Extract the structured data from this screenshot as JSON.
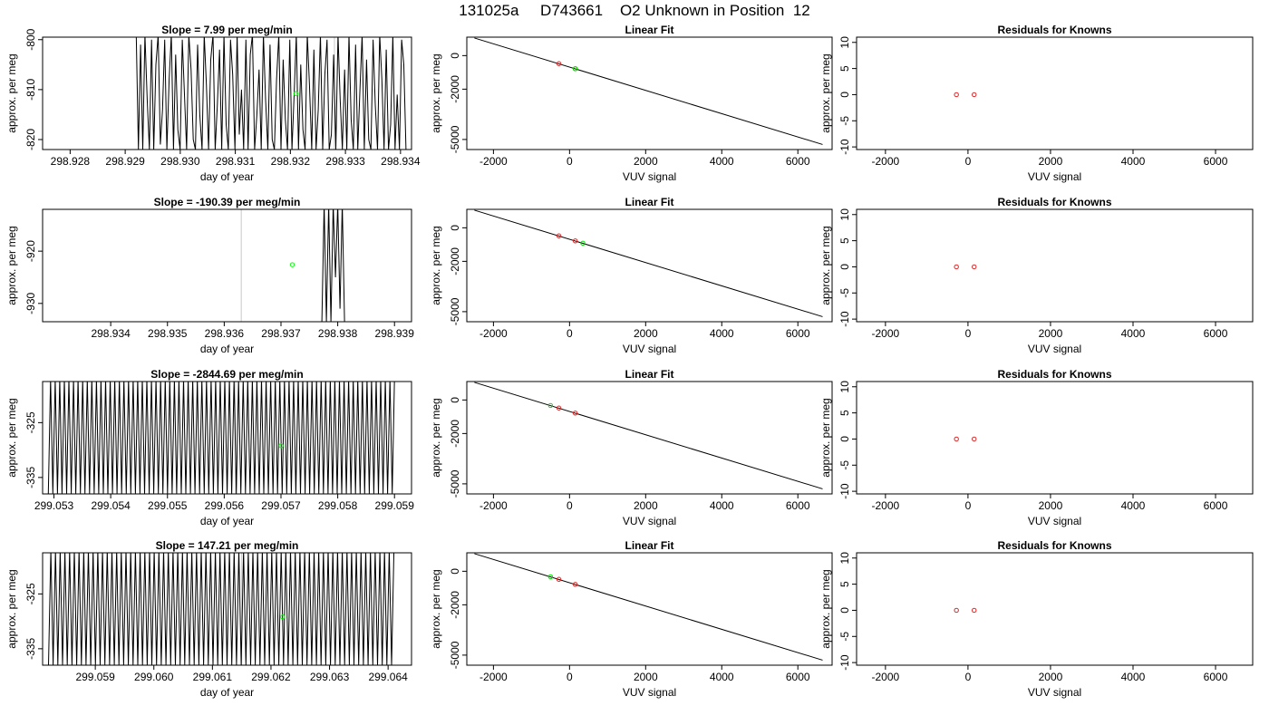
{
  "page": {
    "title": "131025a     D743661    O2 Unknown in Position  12"
  },
  "chart_data": [
    {
      "type": "line",
      "title": "Slope =  7.99  per meg/min",
      "xlabel": "day of year",
      "ylabel": "approx. per meg",
      "xlim": [
        298.9275,
        298.9342
      ],
      "ylim": [
        -822,
        -799.5
      ],
      "x_ticks": [
        298.928,
        298.929,
        298.93,
        298.931,
        298.932,
        298.933,
        298.934
      ],
      "x_tick_labels": [
        "298.928",
        "298.929",
        "298.930",
        "298.931",
        "298.932",
        "298.933",
        "298.934"
      ],
      "y_ticks": [
        -800,
        -810,
        -820
      ],
      "y_tick_labels": [
        "-800",
        "-810",
        "-820"
      ],
      "gray_vline": 298.9328,
      "unknown_point": {
        "x": 298.9321,
        "y": -810.8,
        "color": "#00ff00"
      },
      "trace": {
        "color": "#000000",
        "x_start": 298.9292,
        "x_end": 298.9341,
        "step": 4e-05,
        "y_values": [
          -799,
          -822,
          -801,
          -822,
          -799,
          -812,
          -822,
          -800,
          -822,
          -805,
          -799,
          -821,
          -814,
          -800,
          -822,
          -808,
          -799,
          -822,
          -803,
          -818,
          -822,
          -800,
          -811,
          -822,
          -799,
          -806,
          -820,
          -822,
          -801,
          -815,
          -822,
          -799,
          -809,
          -822,
          -804,
          -799,
          -822,
          -813,
          -802,
          -822,
          -799,
          -817,
          -822,
          -800,
          -807,
          -822,
          -799,
          -819,
          -810,
          -822,
          -800,
          -822,
          -803,
          -799,
          -822,
          -815,
          -806,
          -822,
          -799,
          -812,
          -822,
          -801,
          -820,
          -822,
          -808,
          -799,
          -822,
          -804,
          -816,
          -822,
          -800,
          -822,
          -811,
          -799,
          -822,
          -805,
          -818,
          -822,
          -799,
          -809,
          -822,
          -802,
          -822,
          -814,
          -799,
          -822,
          -807,
          -800,
          -822,
          -819,
          -803,
          -822,
          -799,
          -812,
          -822,
          -806,
          -822,
          -799,
          -816,
          -822,
          -801,
          -822,
          -810,
          -799,
          -822,
          -804,
          -820,
          -822,
          -800,
          -813,
          -822,
          -799,
          -808,
          -822,
          -802,
          -822,
          -817,
          -799,
          -822,
          -811,
          -822,
          -800,
          -805,
          -822
        ]
      }
    },
    {
      "type": "scatter",
      "title": "Linear Fit",
      "xlabel": "VUV signal",
      "ylabel": "approx. per meg",
      "xlim": [
        -2700,
        6900
      ],
      "ylim": [
        -5600,
        1100
      ],
      "x_ticks": [
        -2000,
        0,
        2000,
        4000,
        6000
      ],
      "x_tick_labels": [
        "-2000",
        "0",
        "2000",
        "4000",
        "6000"
      ],
      "y_ticks": [
        0,
        -2000,
        -5000
      ],
      "y_tick_labels": [
        "0",
        "-2000",
        "-5000"
      ],
      "fit_line": {
        "x": [
          -2500,
          6650
        ],
        "y": [
          1050,
          -5300
        ]
      },
      "known_points": [
        {
          "x": -280,
          "y": -480
        },
        {
          "x": 150,
          "y": -780
        }
      ],
      "unknown_points": [
        {
          "x": 150,
          "y": -780
        }
      ]
    },
    {
      "type": "scatter",
      "title": "Residuals for Knowns",
      "xlabel": "VUV signal",
      "ylabel": "approx. per meg",
      "xlim": [
        -2700,
        6900
      ],
      "ylim": [
        -10.5,
        11
      ],
      "x_ticks": [
        -2000,
        0,
        2000,
        4000,
        6000
      ],
      "x_tick_labels": [
        "-2000",
        "0",
        "2000",
        "4000",
        "6000"
      ],
      "y_ticks": [
        10,
        5,
        0,
        -5,
        -10
      ],
      "y_tick_labels": [
        "10",
        "5",
        "0",
        "-5",
        "-10"
      ],
      "known_points": [
        {
          "x": -280,
          "y": 0
        },
        {
          "x": 150,
          "y": 0
        }
      ]
    },
    {
      "type": "line",
      "title": "Slope =  -190.39  per meg/min",
      "xlabel": "day of year",
      "ylabel": "approx. per meg",
      "xlim": [
        298.9328,
        298.9393
      ],
      "ylim": [
        -933.5,
        -912
      ],
      "x_ticks": [
        298.934,
        298.935,
        298.936,
        298.937,
        298.938,
        298.939
      ],
      "x_tick_labels": [
        "298.934",
        "298.935",
        "298.936",
        "298.937",
        "298.938",
        "298.939"
      ],
      "y_ticks": [
        -920,
        -930
      ],
      "y_tick_labels": [
        "-920",
        "-930"
      ],
      "gray_vline": 298.9363,
      "unknown_point": {
        "x": 298.9372,
        "y": -922.6,
        "color": "#00ff00"
      },
      "trace": {
        "color": "#000000",
        "x_start": 298.93772,
        "x_end": 298.93812,
        "step": 4e-05,
        "y_values": [
          -933.5,
          -911,
          -933.5,
          -911,
          -933.5,
          -911,
          -925,
          -911,
          -931,
          -911,
          -933.5
        ]
      }
    },
    {
      "type": "scatter",
      "title": "Linear Fit",
      "xlabel": "VUV signal",
      "ylabel": "approx. per meg",
      "xlim": [
        -2700,
        6900
      ],
      "ylim": [
        -5600,
        1100
      ],
      "x_ticks": [
        -2000,
        0,
        2000,
        4000,
        6000
      ],
      "x_tick_labels": [
        "-2000",
        "0",
        "2000",
        "4000",
        "6000"
      ],
      "y_ticks": [
        0,
        -2000,
        -5000
      ],
      "y_tick_labels": [
        "0",
        "-2000",
        "-5000"
      ],
      "fit_line": {
        "x": [
          -2500,
          6650
        ],
        "y": [
          1050,
          -5300
        ]
      },
      "known_points": [
        {
          "x": -280,
          "y": -480
        },
        {
          "x": 150,
          "y": -780
        }
      ],
      "unknown_points": [
        {
          "x": 350,
          "y": -920
        }
      ]
    },
    {
      "type": "scatter",
      "title": "Residuals for Knowns",
      "xlabel": "VUV signal",
      "ylabel": "approx. per meg",
      "xlim": [
        -2700,
        6900
      ],
      "ylim": [
        -10.5,
        11
      ],
      "x_ticks": [
        -2000,
        0,
        2000,
        4000,
        6000
      ],
      "x_tick_labels": [
        "-2000",
        "0",
        "2000",
        "4000",
        "6000"
      ],
      "y_ticks": [
        10,
        5,
        0,
        -5,
        -10
      ],
      "y_tick_labels": [
        "10",
        "5",
        "0",
        "-5",
        "-10"
      ],
      "known_points": [
        {
          "x": -280,
          "y": 0
        },
        {
          "x": 150,
          "y": 0
        }
      ]
    },
    {
      "type": "line",
      "title": "Slope =  -2844.69  per meg/min",
      "xlabel": "day of year",
      "ylabel": "approx. per meg",
      "xlim": [
        299.0528,
        299.0593
      ],
      "ylim": [
        -338,
        -317.5
      ],
      "x_ticks": [
        299.053,
        299.054,
        299.055,
        299.056,
        299.057,
        299.058,
        299.059
      ],
      "x_tick_labels": [
        "299.053",
        "299.054",
        "299.055",
        "299.056",
        "299.057",
        "299.058",
        "299.059"
      ],
      "y_ticks": [
        -325,
        -335
      ],
      "y_tick_labels": [
        "-325",
        "-335"
      ],
      "gray_vline": 299.0562,
      "unknown_point": {
        "x": 299.057,
        "y": -329.2,
        "color": "#00ff00"
      },
      "trace": {
        "color": "#000000",
        "x_start": 299.0529,
        "x_end": 299.059,
        "step": 4e-05,
        "y_values": [
          -338,
          -317,
          -338,
          -317,
          -338,
          -317,
          -338,
          -317,
          -338,
          -317,
          -338,
          -317,
          -338,
          -317,
          -338,
          -317,
          -338,
          -317,
          -338,
          -317,
          -338,
          -317,
          -338,
          -317,
          -338,
          -317,
          -338,
          -317,
          -338,
          -317,
          -338,
          -317,
          -338,
          -317,
          -338,
          -317,
          -338,
          -317,
          -338,
          -317,
          -338,
          -317,
          -338,
          -317,
          -338,
          -317,
          -338,
          -317,
          -338,
          -317,
          -338,
          -317,
          -338,
          -317,
          -338,
          -317,
          -338,
          -317,
          -338,
          -317,
          -338,
          -317,
          -338,
          -317,
          -338,
          -317,
          -338,
          -317,
          -338,
          -317,
          -338,
          -317,
          -338,
          -317,
          -338,
          -317,
          -338,
          -317,
          -338,
          -317,
          -338,
          -317,
          -338,
          -317,
          -338,
          -317,
          -338,
          -317,
          -338,
          -317,
          -338,
          -317,
          -338,
          -317,
          -338,
          -317,
          -338,
          -317,
          -338,
          -317,
          -338,
          -317,
          -338,
          -317,
          -338,
          -317,
          -338,
          -317,
          -338,
          -317,
          -338,
          -317,
          -338,
          -317,
          -338,
          -317,
          -338,
          -317,
          -338,
          -317,
          -338,
          -317,
          -338,
          -317,
          -338,
          -317,
          -338,
          -317,
          -338,
          -317,
          -338,
          -317,
          -338,
          -317,
          -338,
          -317,
          -338,
          -317,
          -338,
          -317,
          -338,
          -317,
          -338,
          -317,
          -338,
          -317,
          -338,
          -317,
          -338,
          -317,
          -338,
          -317
        ]
      }
    },
    {
      "type": "scatter",
      "title": "Linear Fit",
      "xlabel": "VUV signal",
      "ylabel": "approx. per meg",
      "xlim": [
        -2700,
        6900
      ],
      "ylim": [
        -5600,
        1100
      ],
      "x_ticks": [
        -2000,
        0,
        2000,
        4000,
        6000
      ],
      "x_tick_labels": [
        "-2000",
        "0",
        "2000",
        "4000",
        "6000"
      ],
      "y_ticks": [
        0,
        -2000,
        -5000
      ],
      "y_tick_labels": [
        "0",
        "-2000",
        "-5000"
      ],
      "fit_line": {
        "x": [
          -2500,
          6650
        ],
        "y": [
          1050,
          -5300
        ]
      },
      "known_points": [
        {
          "x": -280,
          "y": -480
        },
        {
          "x": 150,
          "y": -780
        }
      ],
      "unknown_points": [
        {
          "x": -500,
          "y": -330
        }
      ]
    },
    {
      "type": "scatter",
      "title": "Residuals for Knowns",
      "xlabel": "VUV signal",
      "ylabel": "approx. per meg",
      "xlim": [
        -2700,
        6900
      ],
      "ylim": [
        -10.5,
        11
      ],
      "x_ticks": [
        -2000,
        0,
        2000,
        4000,
        6000
      ],
      "x_tick_labels": [
        "-2000",
        "0",
        "2000",
        "4000",
        "6000"
      ],
      "y_ticks": [
        10,
        5,
        0,
        -5,
        -10
      ],
      "y_tick_labels": [
        "10",
        "5",
        "0",
        "-5",
        "-10"
      ],
      "known_points": [
        {
          "x": -280,
          "y": 0
        },
        {
          "x": 150,
          "y": 0
        }
      ]
    },
    {
      "type": "line",
      "title": "Slope =  147.21  per meg/min",
      "xlabel": "day of year",
      "ylabel": "approx. per meg",
      "xlim": [
        299.0581,
        299.0644
      ],
      "ylim": [
        -338,
        -317.5
      ],
      "x_ticks": [
        299.059,
        299.06,
        299.061,
        299.062,
        299.063,
        299.064
      ],
      "x_tick_labels": [
        "299.059",
        "299.060",
        "299.061",
        "299.062",
        "299.063",
        "299.064"
      ],
      "y_ticks": [
        -325,
        -335
      ],
      "y_tick_labels": [
        "-325",
        "-335"
      ],
      "gray_vline": 299.0615,
      "unknown_point": {
        "x": 299.0622,
        "y": -329.2,
        "color": "#00ff00"
      },
      "trace": {
        "color": "#000000",
        "x_start": 299.0582,
        "x_end": 299.0641,
        "step": 4e-05,
        "y_values": [
          -338,
          -317,
          -338,
          -317,
          -338,
          -317,
          -338,
          -317,
          -338,
          -317,
          -338,
          -317,
          -338,
          -317,
          -338,
          -317,
          -338,
          -317,
          -338,
          -317,
          -338,
          -317,
          -338,
          -317,
          -338,
          -317,
          -338,
          -317,
          -338,
          -317,
          -338,
          -317,
          -338,
          -317,
          -338,
          -317,
          -338,
          -317,
          -338,
          -317,
          -338,
          -317,
          -338,
          -317,
          -338,
          -317,
          -338,
          -317,
          -338,
          -317,
          -338,
          -317,
          -338,
          -317,
          -338,
          -317,
          -338,
          -317,
          -338,
          -317,
          -338,
          -317,
          -338,
          -317,
          -338,
          -317,
          -338,
          -317,
          -338,
          -317,
          -338,
          -317,
          -338,
          -317,
          -338,
          -317,
          -338,
          -317,
          -338,
          -317,
          -338,
          -317,
          -338,
          -317,
          -338,
          -317,
          -338,
          -317,
          -338,
          -317,
          -338,
          -317,
          -338,
          -317,
          -338,
          -317,
          -338,
          -317,
          -338,
          -317,
          -338,
          -317,
          -338,
          -317,
          -338,
          -317,
          -338,
          -317,
          -338,
          -317,
          -338,
          -317,
          -338,
          -317,
          -338,
          -317,
          -338,
          -317,
          -338,
          -317,
          -338,
          -317,
          -338,
          -317,
          -338,
          -317,
          -338,
          -317,
          -338,
          -317,
          -338,
          -317,
          -338,
          -317,
          -338,
          -317,
          -338,
          -317,
          -338,
          -317,
          -338,
          -317,
          -338,
          -317,
          -338,
          -317,
          -338,
          -317
        ]
      }
    },
    {
      "type": "scatter",
      "title": "Linear Fit",
      "xlabel": "VUV signal",
      "ylabel": "approx. per meg",
      "xlim": [
        -2700,
        6900
      ],
      "ylim": [
        -5600,
        1100
      ],
      "x_ticks": [
        -2000,
        0,
        2000,
        4000,
        6000
      ],
      "x_tick_labels": [
        "-2000",
        "0",
        "2000",
        "4000",
        "6000"
      ],
      "y_ticks": [
        0,
        -2000,
        -5000
      ],
      "y_tick_labels": [
        "0",
        "-2000",
        "-5000"
      ],
      "fit_line": {
        "x": [
          -2500,
          6650
        ],
        "y": [
          1050,
          -5300
        ]
      },
      "known_points": [
        {
          "x": -280,
          "y": -480
        },
        {
          "x": 150,
          "y": -780
        }
      ],
      "unknown_points": [
        {
          "x": -500,
          "y": -330
        }
      ]
    },
    {
      "type": "scatter",
      "title": "Residuals for Knowns",
      "xlabel": "VUV signal",
      "ylabel": "approx. per meg",
      "xlim": [
        -2700,
        6900
      ],
      "ylim": [
        -10.5,
        11
      ],
      "x_ticks": [
        -2000,
        0,
        2000,
        4000,
        6000
      ],
      "x_tick_labels": [
        "-2000",
        "0",
        "2000",
        "4000",
        "6000"
      ],
      "y_ticks": [
        10,
        5,
        0,
        -5,
        -10
      ],
      "y_tick_labels": [
        "10",
        "5",
        "0",
        "-5",
        "-10"
      ],
      "known_points": [
        {
          "x": -280,
          "y": 0
        },
        {
          "x": 150,
          "y": 0
        }
      ]
    }
  ]
}
